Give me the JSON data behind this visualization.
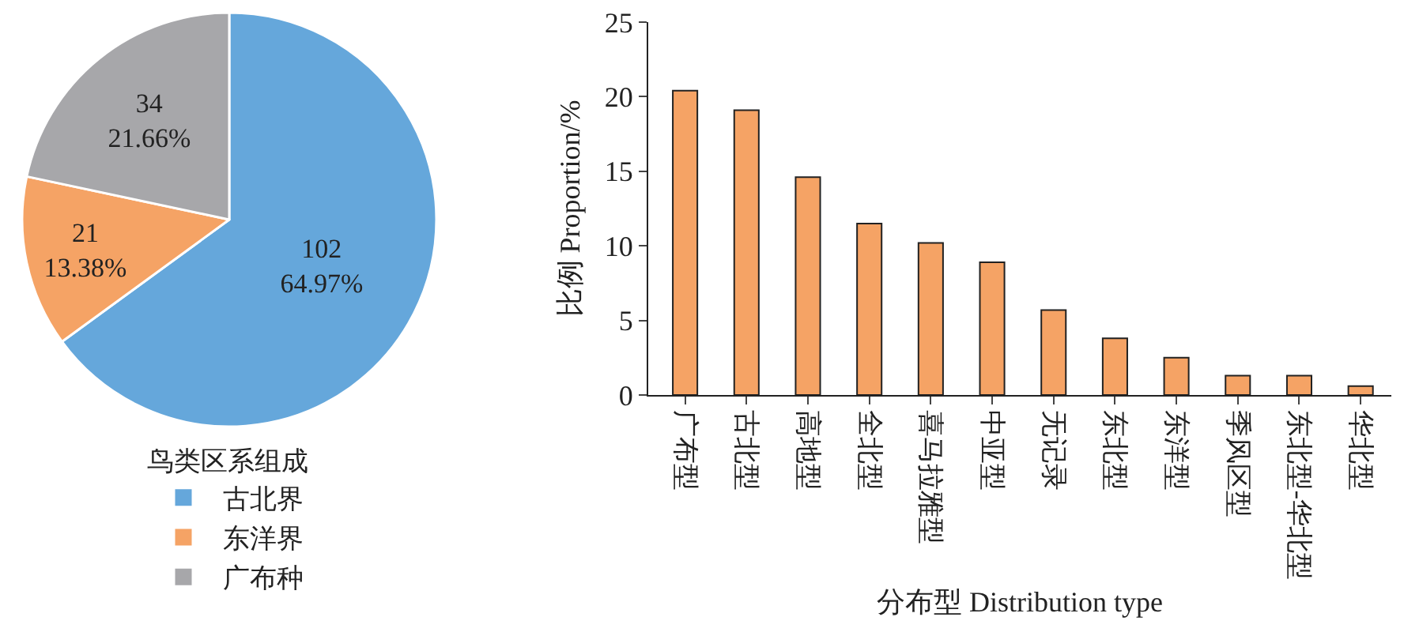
{
  "chart_data": [
    {
      "type": "pie",
      "legend_title": "鸟类区系组成",
      "categories": [
        "古北界",
        "东洋界",
        "广布种"
      ],
      "values": [
        102,
        21,
        34
      ],
      "colors": [
        "#65a7db",
        "#f5a365",
        "#a7a7aa"
      ],
      "value_labels": [
        "102\n64.97%",
        "21\n13.38%",
        "34\n21.66%"
      ],
      "legend": "bottom"
    },
    {
      "type": "bar",
      "categories": [
        "广布型",
        "古北型",
        "高地型",
        "全北型",
        "喜马拉雅型",
        "中亚型",
        "无记录",
        "东北型",
        "东洋型",
        "季风区型",
        "东北型-华北型",
        "华北型"
      ],
      "values": [
        20.4,
        19.1,
        14.6,
        11.5,
        10.2,
        8.9,
        5.7,
        3.8,
        2.5,
        1.3,
        1.3,
        0.6
      ],
      "color": "#f5a365",
      "xlabel": "分布型 Distribution type",
      "ylabel": "比例 Proportion/%",
      "ylim": [
        0,
        25
      ],
      "yticks": [
        0,
        5,
        10,
        15,
        20,
        25
      ],
      "grid": false
    }
  ]
}
